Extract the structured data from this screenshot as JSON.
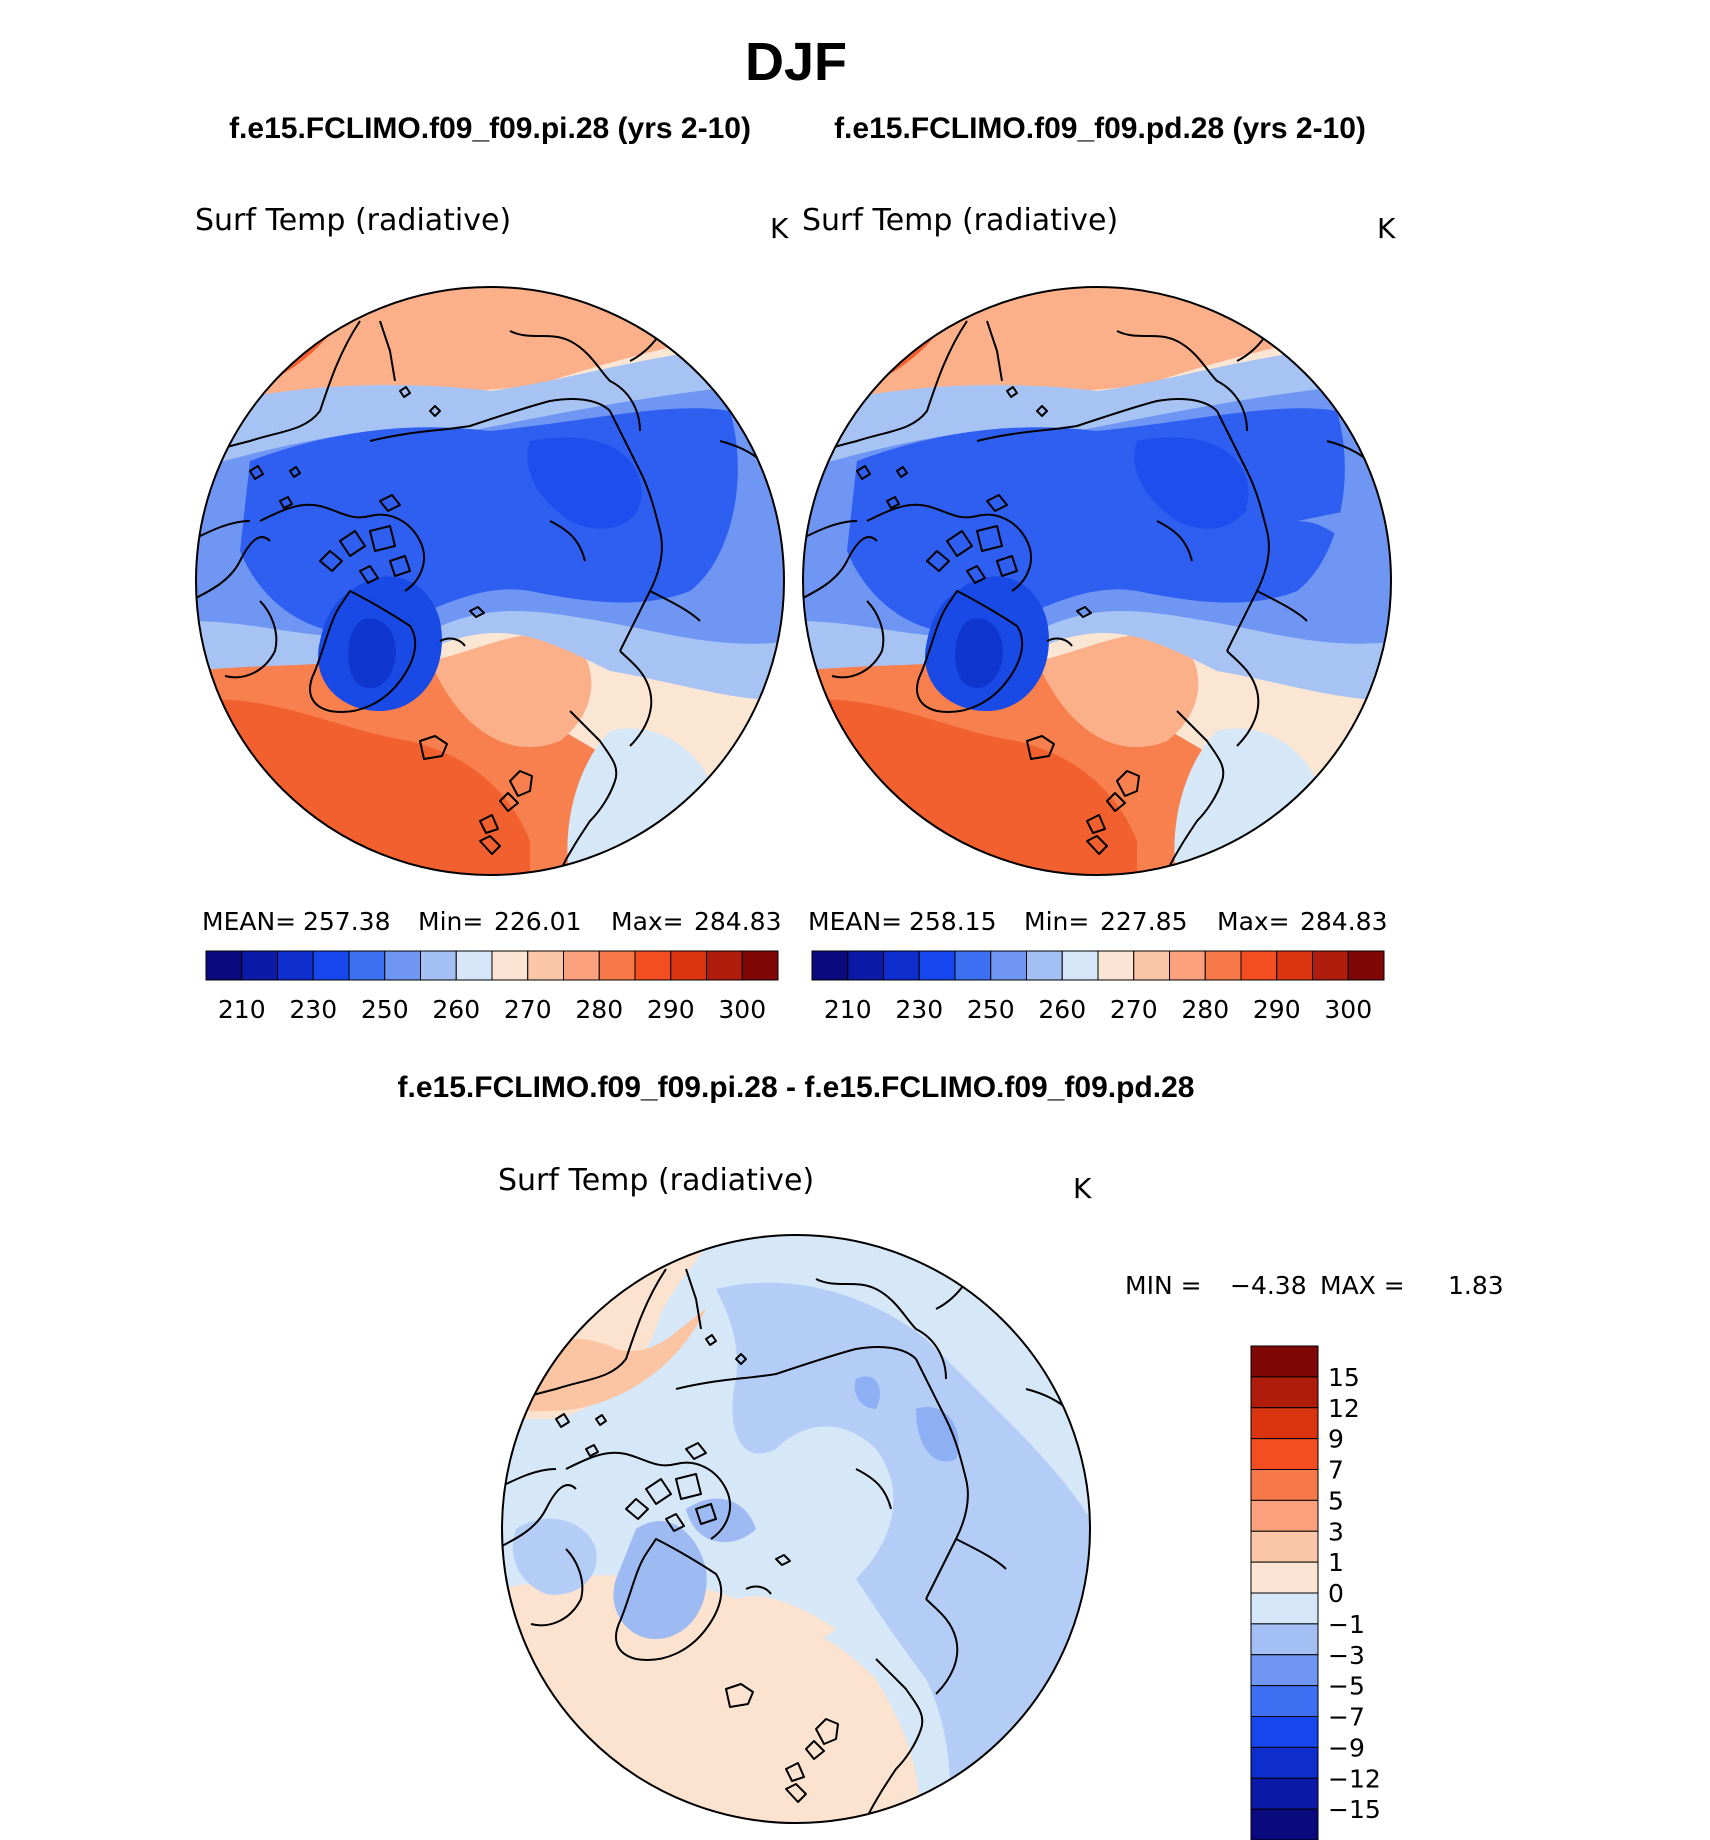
{
  "title": "DJF",
  "panels": [
    {
      "case_title": "f.e15.FCLIMO.f09_f09.pi.28 (yrs 2-10)",
      "variable": "Surf Temp (radiative)",
      "units": "K",
      "stats": {
        "mean_label": "MEAN=",
        "mean": "257.38",
        "min_label": "Min=",
        "min": "226.01",
        "max_label": "Max=",
        "max": "284.83"
      }
    },
    {
      "case_title": "f.e15.FCLIMO.f09_f09.pd.28 (yrs 2-10)",
      "variable": "Surf Temp (radiative)",
      "units": "K",
      "stats": {
        "mean_label": "MEAN=",
        "mean": "258.15",
        "min_label": "Min=",
        "min": "227.85",
        "max_label": "Max=",
        "max": "284.83"
      }
    }
  ],
  "abs_colorbar": {
    "labels": [
      "210",
      "230",
      "250",
      "260",
      "270",
      "280",
      "290",
      "300"
    ],
    "colors": [
      "#0a0a7e",
      "#0b1aa6",
      "#0d2dcc",
      "#1646ee",
      "#3d6ff2",
      "#6e96f2",
      "#a3bff4",
      "#d4e6f8",
      "#fbe4d3",
      "#fcc6a8",
      "#fba17d",
      "#f77848",
      "#f24e22",
      "#da3410",
      "#b01c0b",
      "#7f0806"
    ]
  },
  "diff": {
    "title": "f.e15.FCLIMO.f09_f09.pi.28 - f.e15.FCLIMO.f09_f09.pd.28",
    "variable": "Surf Temp (radiative)",
    "units": "K",
    "min_label": "MIN =",
    "min": "−4.38",
    "max_label": "MAX =",
    "max": "1.83",
    "colorbar": {
      "labels": [
        "15",
        "12",
        "9",
        "7",
        "5",
        "3",
        "1",
        "0",
        "−1",
        "−3",
        "−5",
        "−7",
        "−9",
        "−12",
        "−15"
      ],
      "colors": [
        "#7f0806",
        "#b01c0b",
        "#da3410",
        "#f24e22",
        "#f77848",
        "#fba17d",
        "#fcc6a8",
        "#fbe4d3",
        "#d4e6f8",
        "#a3bff4",
        "#6e96f2",
        "#3d6ff2",
        "#1646ee",
        "#0d2dcc",
        "#0b1aa6",
        "#0a0a7e"
      ]
    }
  },
  "colors": {
    "arctic_cold": "#2f5ff0",
    "greenland": "#1a4ae6",
    "land_mid": "#6f96f2",
    "land_light": "#a7c3f4",
    "pale_blue": "#d6e7f8",
    "peach": "#fce3cf",
    "salmon": "#fbb08a",
    "orange": "#f7804e",
    "red_orange": "#f2602f",
    "coast": "#000000"
  }
}
